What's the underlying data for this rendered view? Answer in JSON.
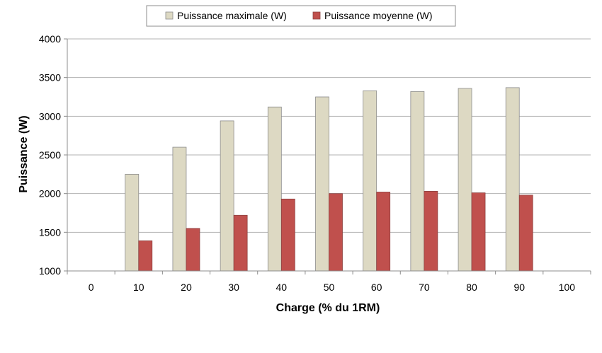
{
  "chart_data": {
    "type": "bar",
    "categories": [
      "0",
      "10",
      "20",
      "30",
      "40",
      "50",
      "60",
      "70",
      "80",
      "90",
      "100"
    ],
    "series": [
      {
        "name": "Puissance maximale (W)",
        "color": "#ddd9c3",
        "values": [
          null,
          2250,
          2600,
          2940,
          3120,
          3250,
          3330,
          3320,
          3360,
          3370,
          null
        ]
      },
      {
        "name": "Puissance moyenne (W)",
        "color": "#c0504d",
        "values": [
          null,
          1390,
          1550,
          1720,
          1930,
          2000,
          2020,
          2030,
          2010,
          1980,
          null
        ]
      }
    ],
    "xlabel": "Charge (% du 1RM)",
    "ylabel": "Puissance (W)",
    "ylim": [
      1000,
      4000
    ],
    "yticks": [
      "1000",
      "1500",
      "2000",
      "2500",
      "3000",
      "3500",
      "4000"
    ],
    "grid": true,
    "legend_position": "top-center"
  }
}
